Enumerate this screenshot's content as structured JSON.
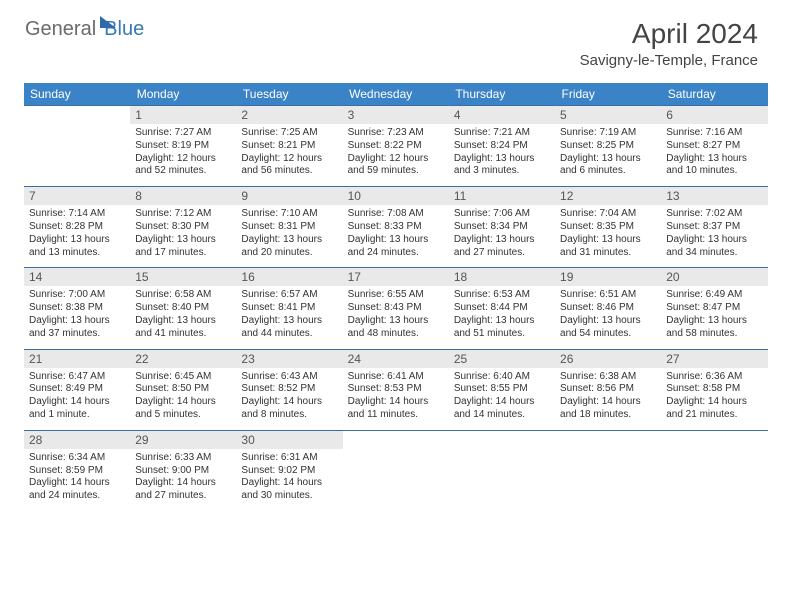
{
  "logo": {
    "general": "General",
    "blue": "Blue"
  },
  "title": "April 2024",
  "location": "Savigny-le-Temple, France",
  "colors": {
    "header_bg": "#3a83c6",
    "header_text": "#ffffff",
    "daynum_bg": "#e9e9e9",
    "border": "#3a6ea5",
    "logo_gray": "#6a6a6a",
    "logo_blue": "#3a78b5"
  },
  "day_headers": [
    "Sunday",
    "Monday",
    "Tuesday",
    "Wednesday",
    "Thursday",
    "Friday",
    "Saturday"
  ],
  "weeks": [
    [
      null,
      {
        "n": "1",
        "sr": "Sunrise: 7:27 AM",
        "ss": "Sunset: 8:19 PM",
        "dl": "Daylight: 12 hours and 52 minutes."
      },
      {
        "n": "2",
        "sr": "Sunrise: 7:25 AM",
        "ss": "Sunset: 8:21 PM",
        "dl": "Daylight: 12 hours and 56 minutes."
      },
      {
        "n": "3",
        "sr": "Sunrise: 7:23 AM",
        "ss": "Sunset: 8:22 PM",
        "dl": "Daylight: 12 hours and 59 minutes."
      },
      {
        "n": "4",
        "sr": "Sunrise: 7:21 AM",
        "ss": "Sunset: 8:24 PM",
        "dl": "Daylight: 13 hours and 3 minutes."
      },
      {
        "n": "5",
        "sr": "Sunrise: 7:19 AM",
        "ss": "Sunset: 8:25 PM",
        "dl": "Daylight: 13 hours and 6 minutes."
      },
      {
        "n": "6",
        "sr": "Sunrise: 7:16 AM",
        "ss": "Sunset: 8:27 PM",
        "dl": "Daylight: 13 hours and 10 minutes."
      }
    ],
    [
      {
        "n": "7",
        "sr": "Sunrise: 7:14 AM",
        "ss": "Sunset: 8:28 PM",
        "dl": "Daylight: 13 hours and 13 minutes."
      },
      {
        "n": "8",
        "sr": "Sunrise: 7:12 AM",
        "ss": "Sunset: 8:30 PM",
        "dl": "Daylight: 13 hours and 17 minutes."
      },
      {
        "n": "9",
        "sr": "Sunrise: 7:10 AM",
        "ss": "Sunset: 8:31 PM",
        "dl": "Daylight: 13 hours and 20 minutes."
      },
      {
        "n": "10",
        "sr": "Sunrise: 7:08 AM",
        "ss": "Sunset: 8:33 PM",
        "dl": "Daylight: 13 hours and 24 minutes."
      },
      {
        "n": "11",
        "sr": "Sunrise: 7:06 AM",
        "ss": "Sunset: 8:34 PM",
        "dl": "Daylight: 13 hours and 27 minutes."
      },
      {
        "n": "12",
        "sr": "Sunrise: 7:04 AM",
        "ss": "Sunset: 8:35 PM",
        "dl": "Daylight: 13 hours and 31 minutes."
      },
      {
        "n": "13",
        "sr": "Sunrise: 7:02 AM",
        "ss": "Sunset: 8:37 PM",
        "dl": "Daylight: 13 hours and 34 minutes."
      }
    ],
    [
      {
        "n": "14",
        "sr": "Sunrise: 7:00 AM",
        "ss": "Sunset: 8:38 PM",
        "dl": "Daylight: 13 hours and 37 minutes."
      },
      {
        "n": "15",
        "sr": "Sunrise: 6:58 AM",
        "ss": "Sunset: 8:40 PM",
        "dl": "Daylight: 13 hours and 41 minutes."
      },
      {
        "n": "16",
        "sr": "Sunrise: 6:57 AM",
        "ss": "Sunset: 8:41 PM",
        "dl": "Daylight: 13 hours and 44 minutes."
      },
      {
        "n": "17",
        "sr": "Sunrise: 6:55 AM",
        "ss": "Sunset: 8:43 PM",
        "dl": "Daylight: 13 hours and 48 minutes."
      },
      {
        "n": "18",
        "sr": "Sunrise: 6:53 AM",
        "ss": "Sunset: 8:44 PM",
        "dl": "Daylight: 13 hours and 51 minutes."
      },
      {
        "n": "19",
        "sr": "Sunrise: 6:51 AM",
        "ss": "Sunset: 8:46 PM",
        "dl": "Daylight: 13 hours and 54 minutes."
      },
      {
        "n": "20",
        "sr": "Sunrise: 6:49 AM",
        "ss": "Sunset: 8:47 PM",
        "dl": "Daylight: 13 hours and 58 minutes."
      }
    ],
    [
      {
        "n": "21",
        "sr": "Sunrise: 6:47 AM",
        "ss": "Sunset: 8:49 PM",
        "dl": "Daylight: 14 hours and 1 minute."
      },
      {
        "n": "22",
        "sr": "Sunrise: 6:45 AM",
        "ss": "Sunset: 8:50 PM",
        "dl": "Daylight: 14 hours and 5 minutes."
      },
      {
        "n": "23",
        "sr": "Sunrise: 6:43 AM",
        "ss": "Sunset: 8:52 PM",
        "dl": "Daylight: 14 hours and 8 minutes."
      },
      {
        "n": "24",
        "sr": "Sunrise: 6:41 AM",
        "ss": "Sunset: 8:53 PM",
        "dl": "Daylight: 14 hours and 11 minutes."
      },
      {
        "n": "25",
        "sr": "Sunrise: 6:40 AM",
        "ss": "Sunset: 8:55 PM",
        "dl": "Daylight: 14 hours and 14 minutes."
      },
      {
        "n": "26",
        "sr": "Sunrise: 6:38 AM",
        "ss": "Sunset: 8:56 PM",
        "dl": "Daylight: 14 hours and 18 minutes."
      },
      {
        "n": "27",
        "sr": "Sunrise: 6:36 AM",
        "ss": "Sunset: 8:58 PM",
        "dl": "Daylight: 14 hours and 21 minutes."
      }
    ],
    [
      {
        "n": "28",
        "sr": "Sunrise: 6:34 AM",
        "ss": "Sunset: 8:59 PM",
        "dl": "Daylight: 14 hours and 24 minutes."
      },
      {
        "n": "29",
        "sr": "Sunrise: 6:33 AM",
        "ss": "Sunset: 9:00 PM",
        "dl": "Daylight: 14 hours and 27 minutes."
      },
      {
        "n": "30",
        "sr": "Sunrise: 6:31 AM",
        "ss": "Sunset: 9:02 PM",
        "dl": "Daylight: 14 hours and 30 minutes."
      },
      null,
      null,
      null,
      null
    ]
  ]
}
